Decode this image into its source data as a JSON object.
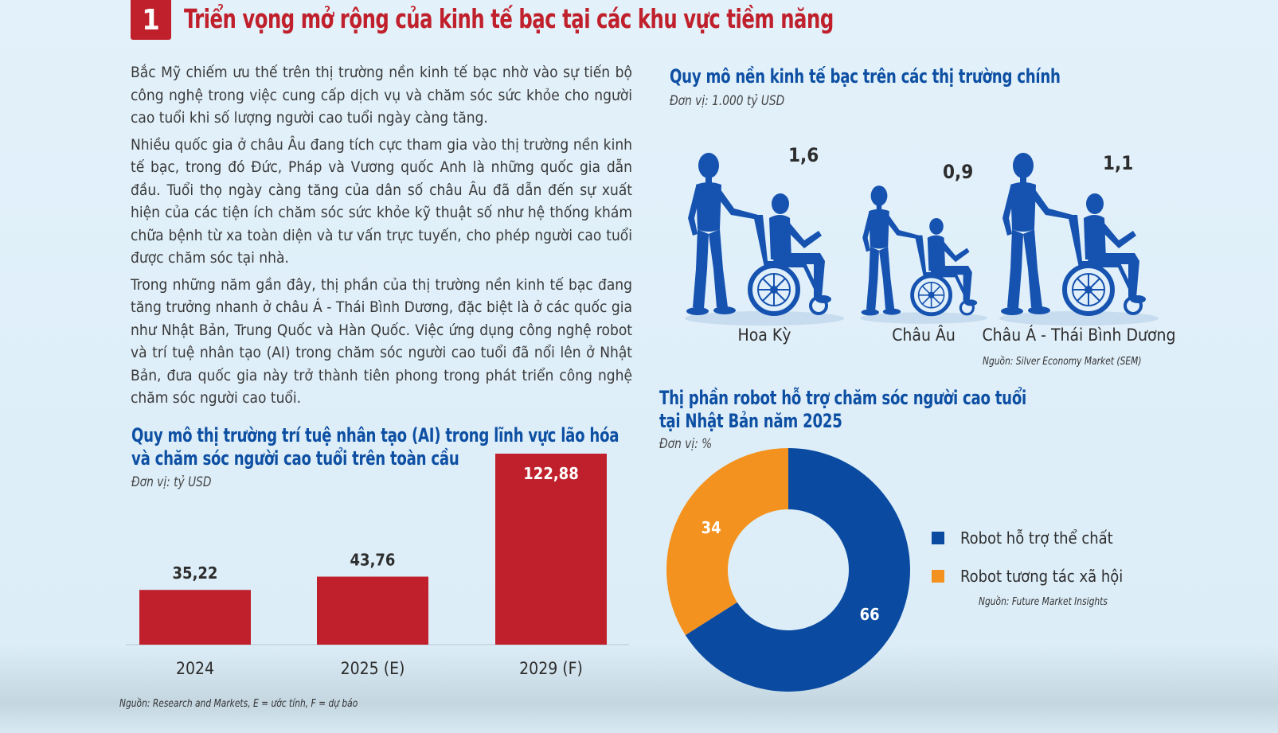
{
  "header": {
    "number": "1",
    "title": "Triển vọng mở rộng của kinh tế bạc tại các khu vực tiềm năng"
  },
  "body": {
    "paragraphs": [
      "Bắc Mỹ chiếm ưu thế trên thị trường nền kinh tế bạc nhờ vào sự tiến bộ công nghệ trong việc cung cấp dịch vụ và chăm sóc sức khỏe cho người cao tuổi khi số lượng người cao tuổi ngày càng tăng.",
      "Nhiều quốc gia ở châu Âu đang tích cực tham gia vào thị trường nền kinh tế bạc, trong đó Đức, Pháp và Vương quốc Anh là những quốc gia dẫn đầu. Tuổi thọ ngày càng tăng của dân số châu Âu đã dẫn đến sự xuất hiện của các tiện ích chăm sóc sức khỏe kỹ thuật số như hệ thống khám chữa bệnh từ xa toàn diện và tư vấn trực tuyến, cho phép người cao tuổi được chăm sóc tại nhà.",
      "Trong những năm gần đây, thị phần của thị trường nền kinh tế bạc đang tăng trưởng nhanh ở châu Á - Thái Bình Dương, đặc biệt là ở các quốc gia như Nhật Bản, Trung Quốc và Hàn Quốc. Việc ứng dụng công nghệ robot và trí tuệ nhân tạo (AI) trong chăm sóc người cao tuổi đã nổi lên ở Nhật Bản, đưa quốc gia này trở thành tiên phong trong phát triển công nghệ chăm sóc người cao tuổi."
    ]
  },
  "colors": {
    "red": "#c0202b",
    "blue": "#0d4fa3",
    "robot": "#1652b0",
    "orange": "#f4921f",
    "donut_blue": "#0a4ba1"
  },
  "chart_data": [
    {
      "type": "bar",
      "title": "Quy mô thị trường trí tuệ nhân tạo (AI) trong lĩnh vực lão hóa và chăm sóc người cao tuổi trên toàn cầu",
      "title_lines": [
        "Quy mô thị trường trí tuệ nhân tạo (AI) trong lĩnh vực lão hóa",
        "và chăm sóc người cao tuổi trên toàn cầu"
      ],
      "unit": "Đơn vị: tỷ USD",
      "categories": [
        "2024",
        "2025 (E)",
        "2029 (F)"
      ],
      "values": [
        35.22,
        43.76,
        122.88
      ],
      "labels": [
        "35,22",
        "43,76",
        "122,88"
      ],
      "ylim": [
        0,
        122.88
      ],
      "source": "Nguồn: Research and Markets, E = ước tính, F = dự báo"
    },
    {
      "type": "bar",
      "title": "Quy mô nền kinh tế bạc trên các thị trường chính",
      "unit": "Đơn vị: 1.000 tỷ USD",
      "categories": [
        "Hoa Kỳ",
        "Châu Âu",
        "Châu Á - Thái Bình Dương"
      ],
      "values": [
        1.6,
        0.9,
        1.1
      ],
      "labels": [
        "1,6",
        "0,9",
        "1,1"
      ],
      "source": "Nguồn: Silver Economy Market (SEM)"
    },
    {
      "type": "pie",
      "title": "Thị phần robot hỗ trợ chăm sóc người cao tuổi tại Nhật Bản năm 2025",
      "title_lines": [
        "Thị phần robot hỗ trợ chăm sóc người cao tuổi",
        "tại Nhật Bản năm 2025"
      ],
      "unit": "Đơn vị: %",
      "categories": [
        "Robot hỗ trợ thể chất",
        "Robot tương tác xã hội"
      ],
      "values": [
        66,
        34
      ],
      "labels": [
        "66",
        "34"
      ],
      "source": "Nguồn: Future Market Insights"
    }
  ]
}
